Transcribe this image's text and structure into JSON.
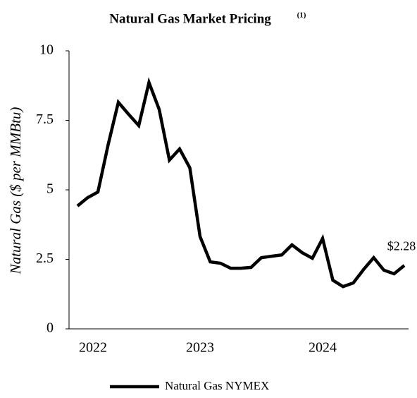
{
  "chart_data": {
    "type": "line",
    "title": "Natural Gas Market Pricing",
    "title_footnote": "(1)",
    "y_label": "Natural Gas ($ per MMBtu)",
    "categories": [
      "2022",
      null,
      null,
      null,
      null,
      null,
      null,
      null,
      null,
      null,
      null,
      null,
      "2023",
      null,
      null,
      null,
      null,
      null,
      null,
      null,
      null,
      null,
      null,
      null,
      "2024",
      null,
      null,
      null,
      null,
      null,
      null,
      null,
      null
    ],
    "series": [
      {
        "name": "Natural Gas NYMEX",
        "color": "#000000",
        "values": [
          4.42,
          4.72,
          4.92,
          6.62,
          8.15,
          7.72,
          7.31,
          8.86,
          7.89,
          6.07,
          6.47,
          5.79,
          3.32,
          2.41,
          2.36,
          2.18,
          2.18,
          2.21,
          2.56,
          2.61,
          2.66,
          3.02,
          2.74,
          2.54,
          3.25,
          1.75,
          1.52,
          1.65,
          2.13,
          2.56,
          2.11,
          1.98,
          2.28
        ],
        "value_labels": [
          null,
          null,
          null,
          null,
          null,
          null,
          null,
          null,
          null,
          null,
          null,
          null,
          null,
          null,
          null,
          null,
          null,
          null,
          null,
          null,
          null,
          null,
          null,
          null,
          null,
          null,
          null,
          null,
          null,
          null,
          null,
          null,
          "$2.28"
        ]
      }
    ],
    "ylim": [
      0,
      10
    ],
    "yticks": [
      0,
      2.5,
      5,
      7.5,
      10
    ],
    "legend": "bottom"
  }
}
